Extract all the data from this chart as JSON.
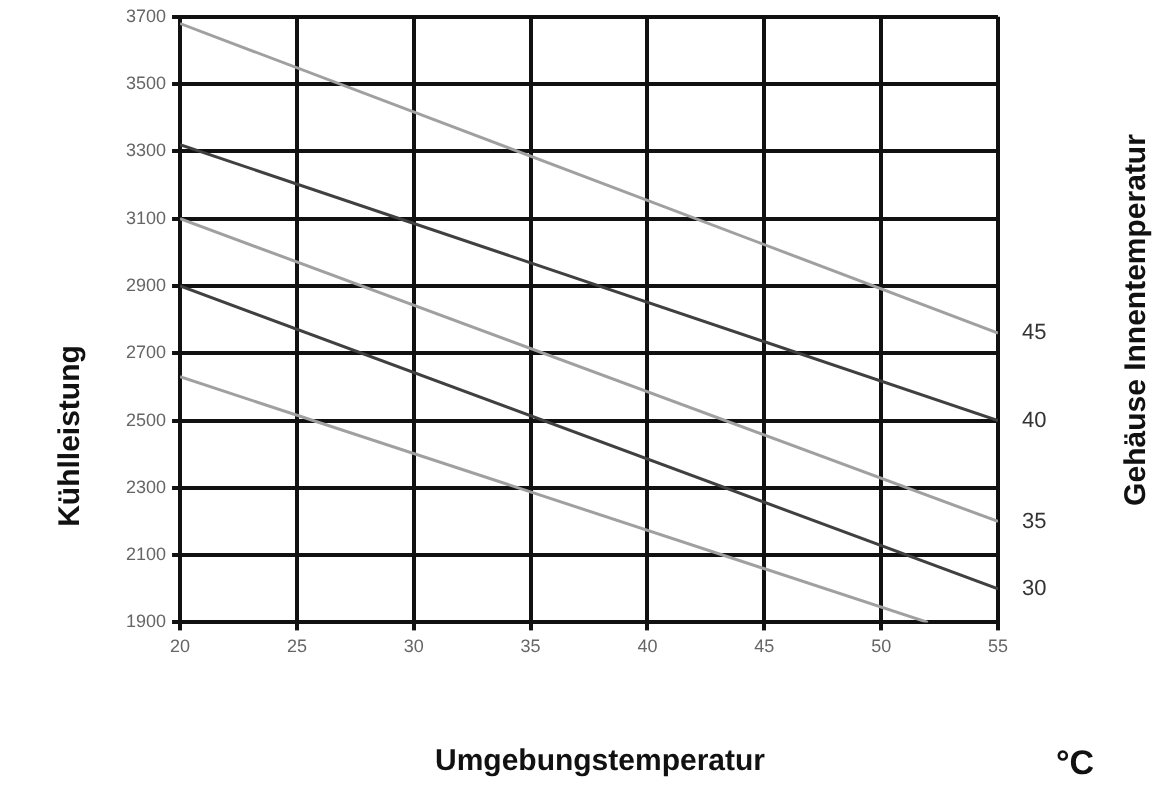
{
  "chart_data": {
    "type": "line",
    "xlabel": "Umgebungstemperatur",
    "ylabel": "Kühlleistung",
    "y2label": "Gehäuse Innentemperatur",
    "annotations": [
      "°C"
    ],
    "xlim": [
      20,
      55
    ],
    "xticks": [
      20,
      25,
      30,
      35,
      40,
      45,
      50,
      55
    ],
    "ylim": [
      1900,
      3700
    ],
    "yticks": [
      1900,
      2100,
      2300,
      2500,
      2700,
      2900,
      3100,
      3300,
      3500,
      3700
    ],
    "grid": true,
    "legend": false,
    "marker": "none",
    "line_style": "solid",
    "series": [
      {
        "name": "45",
        "color": "#a0a0a0",
        "x": [
          20,
          55
        ],
        "values": [
          3680,
          2760
        ]
      },
      {
        "name": "40",
        "color": "#404040",
        "x": [
          20,
          55
        ],
        "values": [
          3320,
          2500
        ]
      },
      {
        "name": "35",
        "color": "#a0a0a0",
        "x": [
          20,
          55
        ],
        "values": [
          3100,
          2200
        ]
      },
      {
        "name": "30",
        "color": "#404040",
        "x": [
          20,
          55
        ],
        "values": [
          2900,
          2000
        ]
      },
      {
        "color": "#a0a0a0",
        "x": [
          20,
          52
        ],
        "values": [
          2630,
          1900
        ]
      }
    ]
  }
}
